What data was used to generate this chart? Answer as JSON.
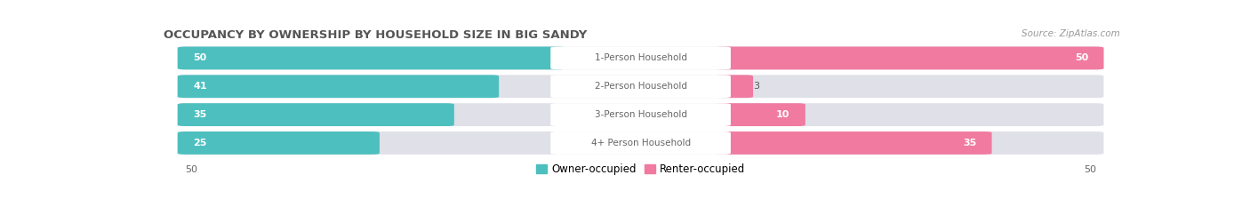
{
  "title": "OCCUPANCY BY OWNERSHIP BY HOUSEHOLD SIZE IN BIG SANDY",
  "source": "Source: ZipAtlas.com",
  "categories": [
    "1-Person Household",
    "2-Person Household",
    "3-Person Household",
    "4+ Person Household"
  ],
  "owner_values": [
    50,
    41,
    35,
    25
  ],
  "renter_values": [
    50,
    3,
    10,
    35
  ],
  "owner_color": "#4DBFBF",
  "renter_color": "#F07AA0",
  "max_value": 50,
  "bar_bg_color": "#E0E0E8",
  "title_fontsize": 9.5,
  "label_fontsize": 7.5,
  "value_fontsize": 8.0,
  "legend_fontsize": 8.5,
  "source_fontsize": 7.5
}
